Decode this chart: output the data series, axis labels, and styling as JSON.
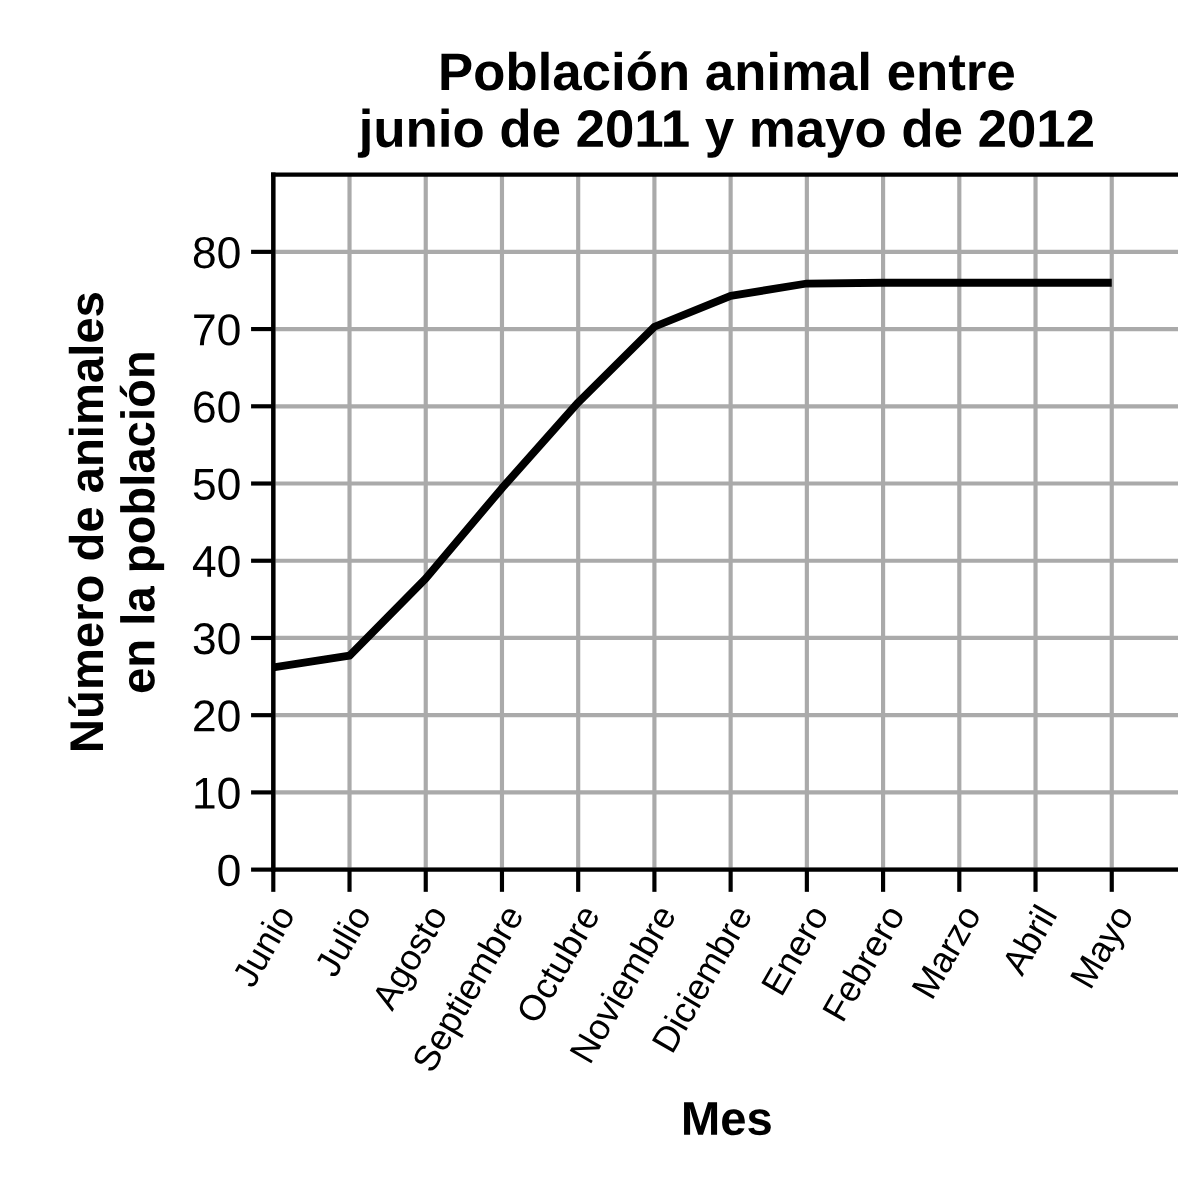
{
  "chart_data": {
    "type": "line",
    "title": "Población animal entre\njunio de 2011 y mayo de 2012",
    "xlabel": "Mes",
    "ylabel": "Número de animales\nen la población",
    "categories": [
      "Junio",
      "Julio",
      "Agosto",
      "Septiembre",
      "Octubre",
      "Noviembre",
      "Diciembre",
      "Enero",
      "Febrero",
      "Marzo",
      "Abril",
      "Mayo"
    ],
    "series": [
      {
        "color": "#000000",
        "values": [
          26.2,
          27.7,
          37.7,
          49.4,
          60.5,
          70.3,
          74.3,
          75.9,
          76,
          76,
          76,
          76
        ]
      }
    ],
    "ylim": [
      0,
      90
    ],
    "yticks": [
      0,
      10,
      20,
      30,
      40,
      50,
      60,
      70,
      80
    ],
    "grid": true,
    "marker": "none",
    "line_style": "solid"
  }
}
